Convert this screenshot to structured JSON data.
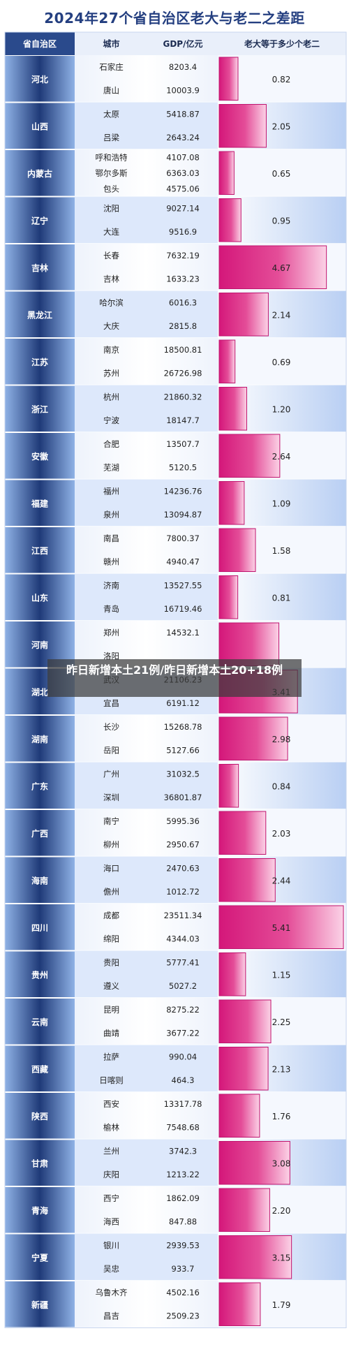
{
  "colors": {
    "province_dark": "#1f3a78",
    "province_light": "#8fb2e6",
    "header_bg": "#2a4a8c",
    "bar_dark": "#d4177a",
    "bar_light": "#fbd2e6",
    "band": "#dde8fb"
  },
  "overlay_text": "昨日新增本土21例/昨日新增本土20+18例",
  "chart_data": {
    "type": "table",
    "title": "2024年27个省自治区老大与老二之差距",
    "columns": [
      "省自治区",
      "城市",
      "GDP/亿元",
      "老大等于多少个老二"
    ],
    "rows": [
      {
        "province": "河北",
        "city1": "石家庄",
        "gdp1": "8203.4",
        "city2": "唐山",
        "gdp2": "10003.9",
        "ratio": 0.82,
        "ratio_label": "0.82"
      },
      {
        "province": "山西",
        "city1": "太原",
        "gdp1": "5418.87",
        "city2": "吕梁",
        "gdp2": "2643.24",
        "ratio": 2.05,
        "ratio_label": "2.05"
      },
      {
        "province": "内蒙古",
        "city1": "呼和浩特",
        "gdp1": "4107.08",
        "city2": "鄂尔多斯",
        "gdp2": "6363.03",
        "city3": "包头",
        "gdp3": "4575.06",
        "ratio": 0.65,
        "ratio_label": "0.65"
      },
      {
        "province": "辽宁",
        "city1": "沈阳",
        "gdp1": "9027.14",
        "city2": "大连",
        "gdp2": "9516.9",
        "ratio": 0.95,
        "ratio_label": "0.95"
      },
      {
        "province": "吉林",
        "city1": "长春",
        "gdp1": "7632.19",
        "city2": "吉林",
        "gdp2": "1633.23",
        "ratio": 4.67,
        "ratio_label": "4.67"
      },
      {
        "province": "黑龙江",
        "city1": "哈尔滨",
        "gdp1": "6016.3",
        "city2": "大庆",
        "gdp2": "2815.8",
        "ratio": 2.14,
        "ratio_label": "2.14"
      },
      {
        "province": "江苏",
        "city1": "南京",
        "gdp1": "18500.81",
        "city2": "苏州",
        "gdp2": "26726.98",
        "ratio": 0.69,
        "ratio_label": "0.69"
      },
      {
        "province": "浙江",
        "city1": "杭州",
        "gdp1": "21860.32",
        "city2": "宁波",
        "gdp2": "18147.7",
        "ratio": 1.2,
        "ratio_label": "1.20"
      },
      {
        "province": "安徽",
        "city1": "合肥",
        "gdp1": "13507.7",
        "city2": "芜湖",
        "gdp2": "5120.5",
        "ratio": 2.64,
        "ratio_label": "2.64"
      },
      {
        "province": "福建",
        "city1": "福州",
        "gdp1": "14236.76",
        "city2": "泉州",
        "gdp2": "13094.87",
        "ratio": 1.09,
        "ratio_label": "1.09"
      },
      {
        "province": "江西",
        "city1": "南昌",
        "gdp1": "7800.37",
        "city2": "赣州",
        "gdp2": "4940.47",
        "ratio": 1.58,
        "ratio_label": "1.58"
      },
      {
        "province": "山东",
        "city1": "济南",
        "gdp1": "13527.55",
        "city2": "青岛",
        "gdp2": "16719.46",
        "ratio": 0.81,
        "ratio_label": "0.81"
      },
      {
        "province": "河南",
        "city1": "郑州",
        "gdp1": "14532.1",
        "city2": "洛阳",
        "gdp2": "",
        "ratio": 2.6,
        "ratio_label": ""
      },
      {
        "province": "湖北",
        "city1": "武汉",
        "gdp1": "21106.23",
        "city2": "宜昌",
        "gdp2": "6191.12",
        "ratio": 3.41,
        "ratio_label": "3.41"
      },
      {
        "province": "湖南",
        "city1": "长沙",
        "gdp1": "15268.78",
        "city2": "岳阳",
        "gdp2": "5127.66",
        "ratio": 2.98,
        "ratio_label": "2.98"
      },
      {
        "province": "广东",
        "city1": "广州",
        "gdp1": "31032.5",
        "city2": "深圳",
        "gdp2": "36801.87",
        "ratio": 0.84,
        "ratio_label": "0.84"
      },
      {
        "province": "广西",
        "city1": "南宁",
        "gdp1": "5995.36",
        "city2": "柳州",
        "gdp2": "2950.67",
        "ratio": 2.03,
        "ratio_label": "2.03"
      },
      {
        "province": "海南",
        "city1": "海口",
        "gdp1": "2470.63",
        "city2": "儋州",
        "gdp2": "1012.72",
        "ratio": 2.44,
        "ratio_label": "2.44"
      },
      {
        "province": "四川",
        "city1": "成都",
        "gdp1": "23511.34",
        "city2": "绵阳",
        "gdp2": "4344.03",
        "ratio": 5.41,
        "ratio_label": "5.41"
      },
      {
        "province": "贵州",
        "city1": "贵阳",
        "gdp1": "5777.41",
        "city2": "遵义",
        "gdp2": "5027.2",
        "ratio": 1.15,
        "ratio_label": "1.15"
      },
      {
        "province": "云南",
        "city1": "昆明",
        "gdp1": "8275.22",
        "city2": "曲靖",
        "gdp2": "3677.22",
        "ratio": 2.25,
        "ratio_label": "2.25"
      },
      {
        "province": "西藏",
        "city1": "拉萨",
        "gdp1": "990.04",
        "city2": "日喀则",
        "gdp2": "464.3",
        "ratio": 2.13,
        "ratio_label": "2.13"
      },
      {
        "province": "陕西",
        "city1": "西安",
        "gdp1": "13317.78",
        "city2": "榆林",
        "gdp2": "7548.68",
        "ratio": 1.76,
        "ratio_label": "1.76"
      },
      {
        "province": "甘肃",
        "city1": "兰州",
        "gdp1": "3742.3",
        "city2": "庆阳",
        "gdp2": "1213.22",
        "ratio": 3.08,
        "ratio_label": "3.08"
      },
      {
        "province": "青海",
        "city1": "西宁",
        "gdp1": "1862.09",
        "city2": "海西",
        "gdp2": "847.88",
        "ratio": 2.2,
        "ratio_label": "2.20"
      },
      {
        "province": "宁夏",
        "city1": "银川",
        "gdp1": "2939.53",
        "city2": "吴忠",
        "gdp2": "933.7",
        "ratio": 3.15,
        "ratio_label": "3.15"
      },
      {
        "province": "新疆",
        "city1": "乌鲁木齐",
        "gdp1": "4502.16",
        "city2": "昌吉",
        "gdp2": "2509.23",
        "ratio": 1.79,
        "ratio_label": "1.79"
      }
    ]
  }
}
